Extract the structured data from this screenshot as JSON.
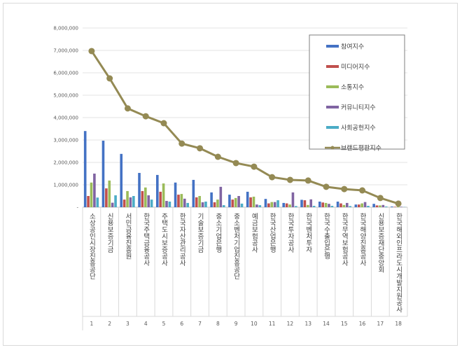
{
  "chart_data": {
    "type": "bar",
    "title": "",
    "xlabel": "",
    "ylabel": "",
    "ylim": [
      0,
      8000000
    ],
    "yticks": [
      "-",
      "1,000,000",
      "2,000,000",
      "3,000,000",
      "4,000,000",
      "5,000,000",
      "6,000,000",
      "7,000,000",
      "8,000,000"
    ],
    "grid": true,
    "legend_position": "top-right",
    "ranks": [
      "1",
      "2",
      "3",
      "4",
      "5",
      "6",
      "7",
      "8",
      "9",
      "10",
      "11",
      "12",
      "13",
      "14",
      "15",
      "16",
      "17",
      "18"
    ],
    "categories": [
      "소상공인시장진흥공단",
      "신용보증기금",
      "서민금융진흥원",
      "한국주택금융공사",
      "주택도시보증공사",
      "한국자산관리공사",
      "기술보증기금",
      "중소기업은행",
      "중소벤처기업진흥공단",
      "예금보험공사",
      "한국산업은행",
      "한국투자공사",
      "한국벤처투자",
      "한국수출입은행",
      "한국무역보험공사",
      "한국해양진흥공사",
      "신용보증재단중앙회",
      "한국해외인프라도시개발지원공사"
    ],
    "series": [
      {
        "name": "참여지수",
        "type": "bar",
        "color": "#4472c4",
        "values": [
          3400000,
          2970000,
          2380000,
          1530000,
          1440000,
          1100000,
          1220000,
          660000,
          560000,
          690000,
          370000,
          190000,
          330000,
          250000,
          250000,
          120000,
          150000,
          30000
        ]
      },
      {
        "name": "미디어지수",
        "type": "bar",
        "color": "#c0504d",
        "values": [
          500000,
          840000,
          340000,
          720000,
          690000,
          560000,
          440000,
          220000,
          340000,
          440000,
          170000,
          170000,
          310000,
          210000,
          170000,
          120000,
          80000,
          20000
        ]
      },
      {
        "name": "소통지수",
        "type": "bar",
        "color": "#9bbb59",
        "values": [
          1100000,
          1190000,
          720000,
          880000,
          1060000,
          590000,
          500000,
          340000,
          410000,
          470000,
          230000,
          120000,
          100000,
          190000,
          100000,
          170000,
          80000,
          30000
        ]
      },
      {
        "name": "커뮤니티지수",
        "type": "bar",
        "color": "#8064a2",
        "values": [
          1500000,
          200000,
          440000,
          530000,
          280000,
          380000,
          220000,
          910000,
          500000,
          120000,
          230000,
          660000,
          350000,
          150000,
          190000,
          230000,
          100000,
          20000
        ]
      },
      {
        "name": "사회공헌지수",
        "type": "bar",
        "color": "#4bacc6",
        "values": [
          430000,
          530000,
          500000,
          340000,
          250000,
          190000,
          250000,
          90000,
          160000,
          90000,
          310000,
          50000,
          60000,
          60000,
          50000,
          60000,
          30000,
          10000
        ]
      },
      {
        "name": "브랜드평판지수",
        "type": "line",
        "color": "#948a54",
        "values": [
          6970000,
          5750000,
          4410000,
          4060000,
          3750000,
          2840000,
          2630000,
          2250000,
          1970000,
          1810000,
          1340000,
          1220000,
          1190000,
          910000,
          810000,
          750000,
          410000,
          160000
        ]
      }
    ]
  }
}
